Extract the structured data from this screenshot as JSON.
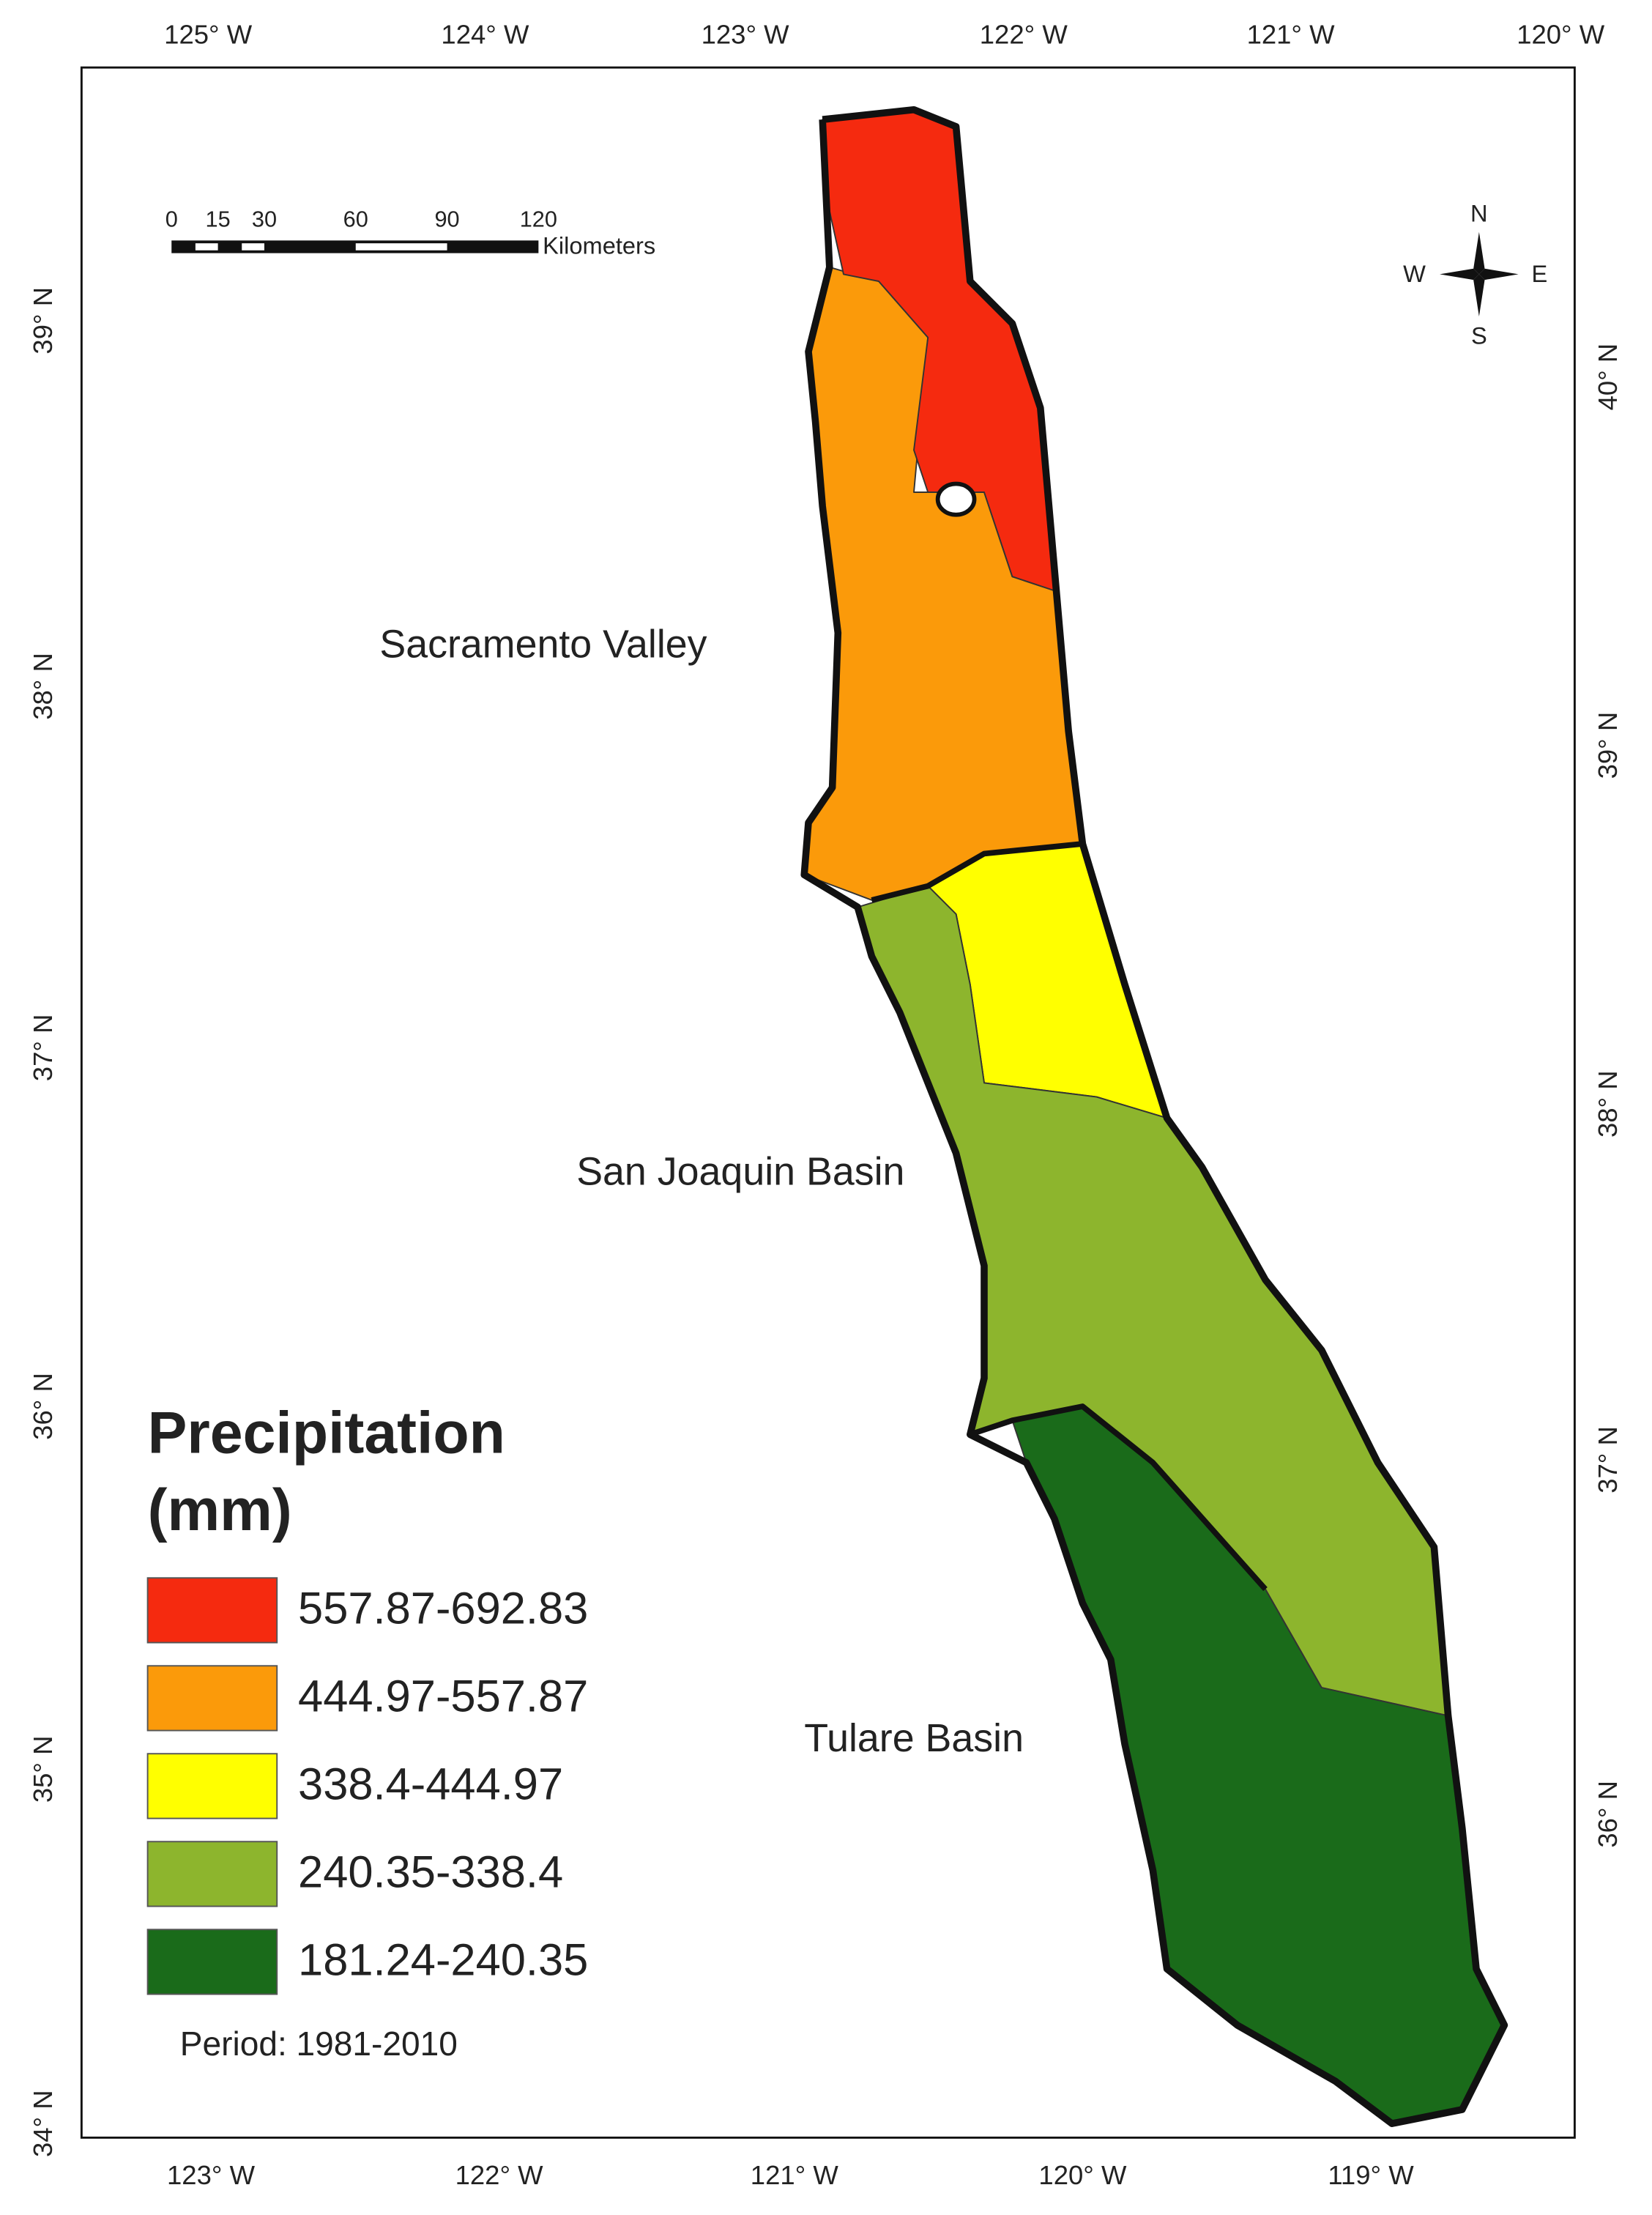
{
  "map": {
    "top_axis": [
      "125° W",
      "124° W",
      "123° W",
      "122° W",
      "121° W",
      "120° W"
    ],
    "bottom_axis": [
      "123° W",
      "122° W",
      "121° W",
      "120° W",
      "119° W"
    ],
    "left_axis": [
      "39° N",
      "38° N",
      "37° N",
      "36° N",
      "35° N",
      "34° N"
    ],
    "right_axis": [
      "40° N",
      "39° N",
      "38° N",
      "37° N",
      "36° N"
    ],
    "scale_bar": {
      "ticks": [
        "0",
        "15",
        "30",
        "60",
        "90",
        "120"
      ],
      "unit": "Kilometers"
    },
    "compass": {
      "north": "N",
      "south": "S",
      "west": "W",
      "east": "E"
    },
    "regions": [
      "Sacramento Valley",
      "San Joaquin Basin",
      "Tulare Basin"
    ],
    "legend": {
      "title_lines": [
        "Precipitation",
        "(mm)"
      ],
      "items": [
        {
          "label": "557.87-692.83",
          "color": "#f52a0f"
        },
        {
          "label": "444.97-557.87",
          "color": "#fb9a0a"
        },
        {
          "label": "338.4-444.97",
          "color": "#ffff00"
        },
        {
          "label": "240.35-338.4",
          "color": "#8db52d"
        },
        {
          "label": "181.24-240.35",
          "color": "#1a6b1a"
        }
      ]
    },
    "note": "Period: 1981-2010"
  }
}
